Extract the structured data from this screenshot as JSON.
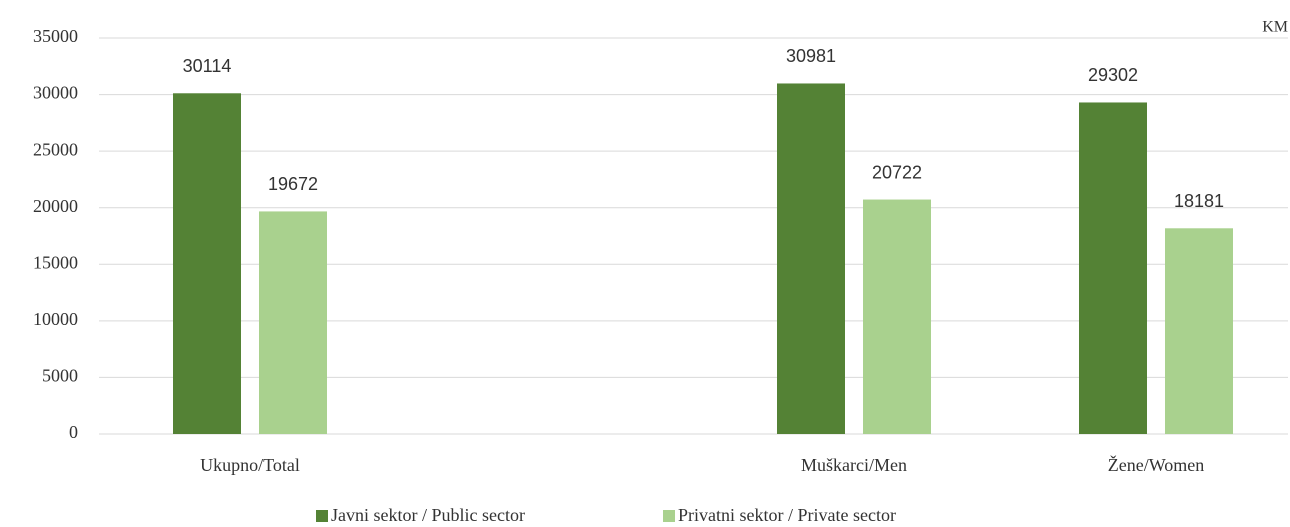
{
  "chart_data": {
    "type": "bar",
    "unit": "KM",
    "categories": [
      "Ukupno/Total",
      null,
      "Muškarci/Men",
      "Žene/Women"
    ],
    "series": [
      {
        "name": "Javni sektor / Public sector",
        "color": "#548235",
        "values": [
          30114,
          null,
          30981,
          29302
        ]
      },
      {
        "name": "Privatni sektor / Private sector",
        "color": "#a9d18e",
        "values": [
          19672,
          null,
          20722,
          18181
        ]
      }
    ],
    "ylim": [
      0,
      35000
    ],
    "yticks": [
      0,
      5000,
      10000,
      15000,
      20000,
      25000,
      30000,
      35000
    ],
    "grid": true,
    "legend": "bottom"
  }
}
